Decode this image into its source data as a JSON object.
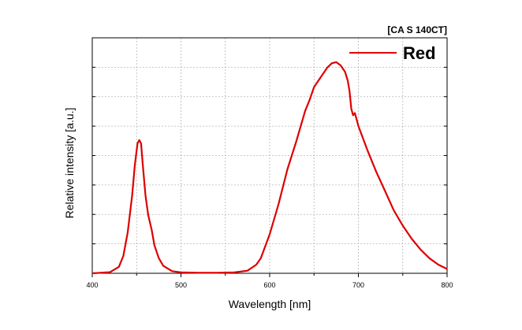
{
  "header": {
    "instrument_label": "[CA S 140CT]"
  },
  "chart_data": {
    "type": "line",
    "title": "",
    "xlabel": "Wavelength [nm]",
    "ylabel": "Relative intensity [a.u.]",
    "xlim": [
      400,
      800
    ],
    "ylim": [
      0,
      1
    ],
    "x_ticks": [
      400,
      500,
      600,
      700,
      800
    ],
    "x_tick_labels": [
      "400",
      "500",
      "600",
      "700",
      "800"
    ],
    "y_tick_labels_shown": false,
    "grid": true,
    "legend_placement": "top-right",
    "series": [
      {
        "name": "Red",
        "color": "#dd0000",
        "x": [
          400,
          420,
          430,
          435,
          440,
          445,
          448,
          451,
          453,
          455,
          457,
          460,
          463,
          467,
          470,
          475,
          480,
          490,
          500,
          520,
          540,
          560,
          575,
          585,
          590,
          600,
          610,
          620,
          630,
          640,
          645,
          650,
          660,
          665,
          670,
          675,
          680,
          685,
          688,
          690,
          692,
          694,
          696,
          698,
          700,
          710,
          720,
          730,
          740,
          750,
          760,
          770,
          780,
          790,
          800
        ],
        "y": [
          0.0,
          0.005,
          0.03,
          0.08,
          0.19,
          0.36,
          0.5,
          0.6,
          0.615,
          0.6,
          0.5,
          0.36,
          0.27,
          0.2,
          0.13,
          0.07,
          0.035,
          0.01,
          0.004,
          0.002,
          0.002,
          0.004,
          0.012,
          0.04,
          0.07,
          0.18,
          0.32,
          0.48,
          0.61,
          0.75,
          0.8,
          0.86,
          0.92,
          0.95,
          0.97,
          0.975,
          0.96,
          0.93,
          0.89,
          0.84,
          0.76,
          0.73,
          0.74,
          0.71,
          0.68,
          0.57,
          0.47,
          0.38,
          0.29,
          0.22,
          0.16,
          0.11,
          0.07,
          0.04,
          0.02
        ]
      }
    ]
  }
}
